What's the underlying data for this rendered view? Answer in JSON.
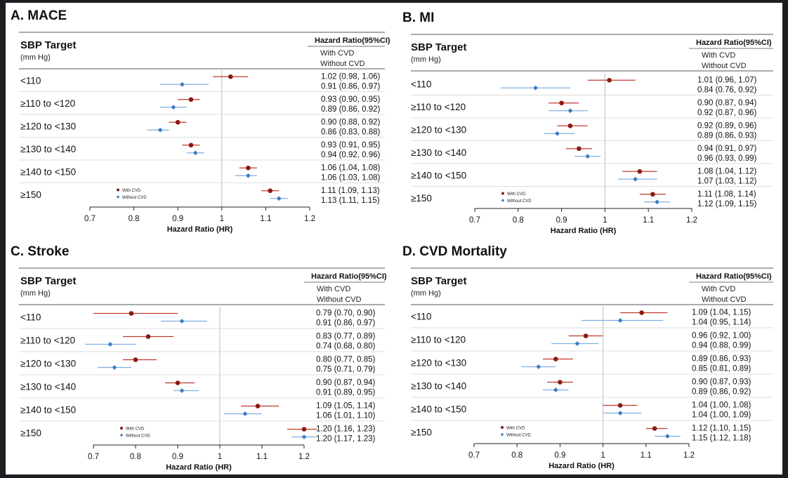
{
  "header": {
    "sbp_title": "SBP Target",
    "sbp_unit": "(mm Hg)",
    "hr_title": "Hazard Ratio(95%CI)",
    "with_label": "With CVD",
    "without_label": "Without CVD"
  },
  "legend": {
    "with": "With CVD",
    "without": "Without CVD"
  },
  "colors": {
    "with": "#8b1a12",
    "with_ci": "#c0392b",
    "without": "#3b7dc0",
    "without_ci": "#7fb0e0"
  },
  "chart_data": [
    {
      "type": "scatter",
      "title": "A. MACE",
      "xlabel": "Hazard Ratio (HR)",
      "xlim": [
        0.7,
        1.2
      ],
      "xticks": [
        "0.7",
        "0.8",
        "0.9",
        "1",
        "1.1",
        "1.2"
      ],
      "reference_line": 1,
      "categories": [
        "<110",
        "≥110 to <120",
        "≥120 to <130",
        "≥130 to <140",
        "≥140 to <150",
        "≥150"
      ],
      "series": [
        {
          "name": "With CVD",
          "values": [
            1.02,
            0.93,
            0.9,
            0.93,
            1.06,
            1.11
          ],
          "lower": [
            0.98,
            0.9,
            0.88,
            0.91,
            1.04,
            1.09
          ],
          "upper": [
            1.06,
            0.95,
            0.92,
            0.95,
            1.08,
            1.13
          ],
          "labels": [
            "1.02 (0.98, 1.06)",
            "0.93 (0.90, 0.95)",
            "0.90 (0.88, 0.92)",
            "0.93 (0.91, 0.95)",
            "1.06 (1.04, 1.08)",
            "1.11 (1.09, 1.13)"
          ]
        },
        {
          "name": "Without CVD",
          "values": [
            0.91,
            0.89,
            0.86,
            0.94,
            1.06,
            1.13
          ],
          "lower": [
            0.86,
            0.86,
            0.83,
            0.92,
            1.03,
            1.11
          ],
          "upper": [
            0.97,
            0.92,
            0.88,
            0.96,
            1.08,
            1.15
          ],
          "labels": [
            "0.91 (0.86, 0.97)",
            "0.89 (0.86, 0.92)",
            "0.86 (0.83, 0.88)",
            "0.94 (0.92, 0.96)",
            "1.06 (1.03, 1.08)",
            "1.13 (1.11, 1.15)"
          ]
        }
      ]
    },
    {
      "type": "scatter",
      "title": "B. MI",
      "xlabel": "Hazard Ratio (HR)",
      "xlim": [
        0.7,
        1.2
      ],
      "xticks": [
        "0.7",
        "0.8",
        "0.9",
        "1",
        "1.1",
        "1.2"
      ],
      "reference_line": 1,
      "categories": [
        "<110",
        "≥110 to <120",
        "≥120 to <130",
        "≥130 to <140",
        "≥140 to <150",
        "≥150"
      ],
      "series": [
        {
          "name": "With CVD",
          "values": [
            1.01,
            0.9,
            0.92,
            0.94,
            1.08,
            1.11
          ],
          "lower": [
            0.96,
            0.87,
            0.89,
            0.91,
            1.04,
            1.08
          ],
          "upper": [
            1.07,
            0.94,
            0.96,
            0.97,
            1.12,
            1.14
          ],
          "labels": [
            "1.01 (0.96, 1.07)",
            "0.90 (0.87, 0.94)",
            "0.92 (0.89, 0.96)",
            "0.94 (0.91, 0.97)",
            "1.08 (1.04, 1.12)",
            "1.11 (1.08, 1.14)"
          ]
        },
        {
          "name": "Without CVD",
          "values": [
            0.84,
            0.92,
            0.89,
            0.96,
            1.07,
            1.12
          ],
          "lower": [
            0.76,
            0.87,
            0.86,
            0.93,
            1.03,
            1.09
          ],
          "upper": [
            0.92,
            0.96,
            0.93,
            0.99,
            1.12,
            1.15
          ],
          "labels": [
            "0.84 (0.76, 0.92)",
            "0.92 (0.87, 0.96)",
            "0.89 (0.86, 0.93)",
            "0.96 (0.93, 0.99)",
            "1.07 (1.03, 1.12)",
            "1.12 (1.09, 1.15)"
          ]
        }
      ]
    },
    {
      "type": "scatter",
      "title": "C. Stroke",
      "xlabel": "Hazard Ratio (HR)",
      "xlim": [
        0.7,
        1.2
      ],
      "xticks": [
        "0.7",
        "0.8",
        "0.9",
        "1",
        "1.1",
        "1.2"
      ],
      "reference_line": 1,
      "categories": [
        "<110",
        "≥110 to <120",
        "≥120 to <130",
        "≥130 to <140",
        "≥140 to <150",
        "≥150"
      ],
      "series": [
        {
          "name": "With CVD",
          "values": [
            0.79,
            0.83,
            0.8,
            0.9,
            1.09,
            1.2
          ],
          "lower": [
            0.7,
            0.77,
            0.77,
            0.87,
            1.05,
            1.16
          ],
          "upper": [
            0.9,
            0.89,
            0.85,
            0.94,
            1.14,
            1.23
          ],
          "labels": [
            "0.79 (0.70, 0.90)",
            "0.83 (0.77, 0.89)",
            "0.80 (0.77, 0.85)",
            "0.90 (0.87, 0.94)",
            "1.09 (1.05, 1.14)",
            "1.20 (1.16, 1.23)"
          ]
        },
        {
          "name": "Without CVD",
          "values": [
            0.91,
            0.74,
            0.75,
            0.91,
            1.06,
            1.2
          ],
          "lower": [
            0.86,
            0.68,
            0.71,
            0.89,
            1.01,
            1.17
          ],
          "upper": [
            0.97,
            0.8,
            0.79,
            0.95,
            1.1,
            1.23
          ],
          "labels": [
            "0.91 (0.86, 0.97)",
            "0.74 (0.68, 0.80)",
            "0.75 (0.71, 0.79)",
            "0.91 (0.89, 0.95)",
            "1.06 (1.01, 1.10)",
            "1.20 (1.17, 1.23)"
          ]
        }
      ]
    },
    {
      "type": "scatter",
      "title": "D. CVD Mortality",
      "xlabel": "Hazard Ratio (HR)",
      "xlim": [
        0.7,
        1.2
      ],
      "xticks": [
        "0.7",
        "0.8",
        "0.9",
        "1",
        "1.1",
        "1.2"
      ],
      "reference_line": 1,
      "categories": [
        "<110",
        "≥110 to <120",
        "≥120 to <130",
        "≥130 to <140",
        "≥140 to <150",
        "≥150"
      ],
      "series": [
        {
          "name": "With CVD",
          "values": [
            1.09,
            0.96,
            0.89,
            0.9,
            1.04,
            1.12
          ],
          "lower": [
            1.04,
            0.92,
            0.86,
            0.87,
            1.0,
            1.1
          ],
          "upper": [
            1.15,
            1.0,
            0.93,
            0.93,
            1.08,
            1.15
          ],
          "labels": [
            "1.09 (1.04, 1.15)",
            "0.96 (0.92, 1.00)",
            "0.89 (0.86, 0.93)",
            "0.90 (0.87, 0.93)",
            "1.04 (1.00, 1.08)",
            "1.12 (1.10, 1.15)"
          ]
        },
        {
          "name": "Without CVD",
          "values": [
            1.04,
            0.94,
            0.85,
            0.89,
            1.04,
            1.15
          ],
          "lower": [
            0.95,
            0.88,
            0.81,
            0.86,
            1.0,
            1.12
          ],
          "upper": [
            1.14,
            0.99,
            0.89,
            0.92,
            1.09,
            1.18
          ],
          "labels": [
            "1.04 (0.95, 1.14)",
            "0.94 (0.88, 0.99)",
            "0.85 (0.81, 0.89)",
            "0.89 (0.86, 0.92)",
            "1.04 (1.00, 1.09)",
            "1.15 (1.12, 1.18)"
          ]
        }
      ]
    }
  ]
}
